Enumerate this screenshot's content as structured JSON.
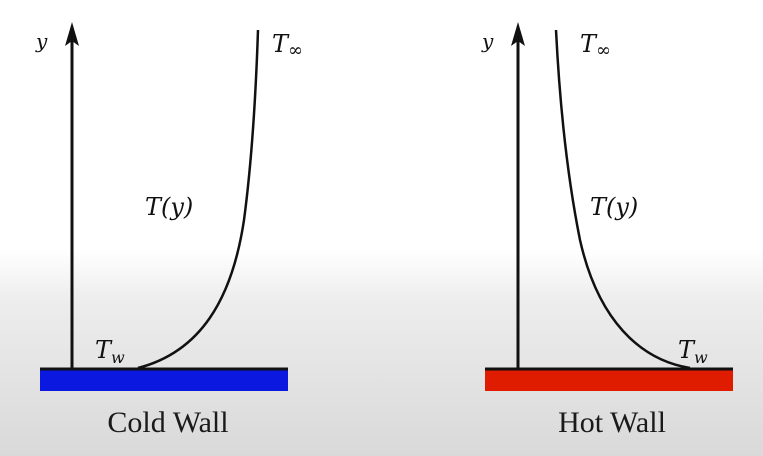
{
  "colors": {
    "cold_wall": "#0b18e0",
    "hot_wall": "#e01c00",
    "ink": "#111111"
  },
  "panels": [
    {
      "id": "cold",
      "axis_label": "y",
      "far_temperature": "T∞",
      "profile_label": "T(y)",
      "wall_temperature": "Tw",
      "caption": "Cold Wall"
    },
    {
      "id": "hot",
      "axis_label": "y",
      "far_temperature": "T∞",
      "profile_label": "T(y)",
      "wall_temperature": "Tw",
      "caption": "Hot Wall"
    }
  ]
}
